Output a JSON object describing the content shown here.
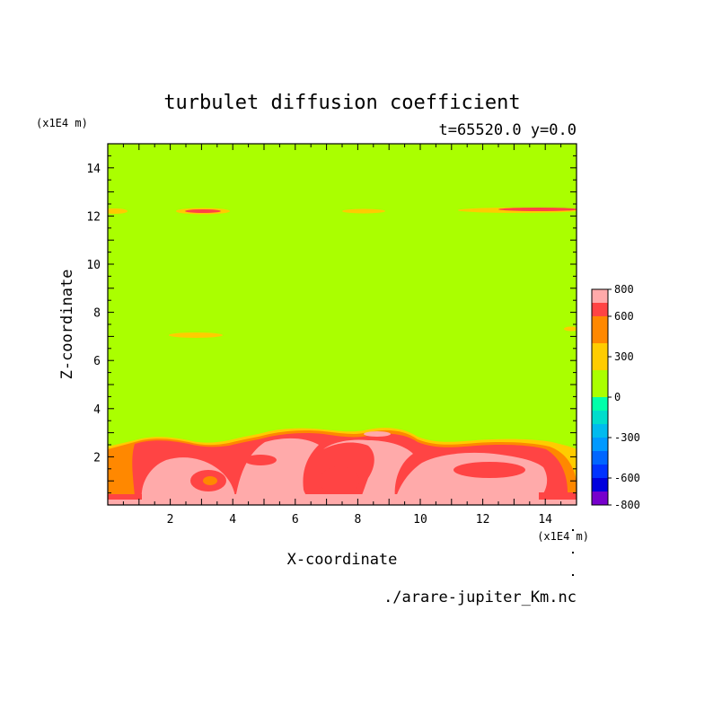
{
  "chart_data": {
    "type": "heatmap",
    "title": "turbulet diffusion coefficient",
    "subtitle": "t=65520.0 y=0.0",
    "xlabel": "X-coordinate",
    "ylabel": "Z-coordinate",
    "x_unit": "(x1E4 m)",
    "y_unit": "(x1E4 m)",
    "xlim": [
      0,
      15
    ],
    "ylim": [
      0,
      15
    ],
    "x_ticks": [
      2,
      4,
      6,
      8,
      10,
      12,
      14
    ],
    "y_ticks": [
      2,
      4,
      6,
      8,
      10,
      12,
      14
    ],
    "source_file": "./arare-jupiter_Km.nc",
    "background_level": 0,
    "colorbar": {
      "tick_labels": [
        "800",
        "600",
        "300",
        "0",
        "-300",
        "-600",
        "-800"
      ],
      "tick_values": [
        800,
        600,
        300,
        0,
        -300,
        -600,
        -800
      ],
      "min": -800,
      "max": 800,
      "levels": [
        {
          "from": -800,
          "to": -700,
          "color": "#7700cc"
        },
        {
          "from": -700,
          "to": -600,
          "color": "#0000dd"
        },
        {
          "from": -600,
          "to": -500,
          "color": "#0033ff"
        },
        {
          "from": -500,
          "to": -400,
          "color": "#0066ff"
        },
        {
          "from": -400,
          "to": -300,
          "color": "#0099ff"
        },
        {
          "from": -300,
          "to": -200,
          "color": "#00bbee"
        },
        {
          "from": -200,
          "to": -100,
          "color": "#00ddcc"
        },
        {
          "from": -100,
          "to": 0,
          "color": "#00ffaa"
        },
        {
          "from": 0,
          "to": 100,
          "color": "#aaff00"
        },
        {
          "from": 100,
          "to": 200,
          "color": "#aaff00"
        },
        {
          "from": 200,
          "to": 300,
          "color": "#ffcc00"
        },
        {
          "from": 300,
          "to": 400,
          "color": "#ffcc00"
        },
        {
          "from": 400,
          "to": 500,
          "color": "#ff8800"
        },
        {
          "from": 500,
          "to": 600,
          "color": "#ff8800"
        },
        {
          "from": 600,
          "to": 700,
          "color": "#ff4444"
        },
        {
          "from": 700,
          "to": 800,
          "color": "#ffaaaa"
        }
      ]
    },
    "features": [
      {
        "kind": "boundary_layer",
        "x_range": [
          0,
          15
        ],
        "z_top_approx": 3.2,
        "max_level": 800
      },
      {
        "kind": "thin_streak",
        "x_range": [
          0,
          0.5
        ],
        "z": 12.2,
        "max_level": 600
      },
      {
        "kind": "thin_streak",
        "x_range": [
          2.2,
          3.8
        ],
        "z": 12.2,
        "max_level": 600
      },
      {
        "kind": "thin_streak",
        "x_range": [
          7.5,
          9.0
        ],
        "z": 12.2,
        "max_level": 300
      },
      {
        "kind": "thin_streak",
        "x_range": [
          11.3,
          15
        ],
        "z": 12.2,
        "max_level": 600
      },
      {
        "kind": "thin_streak",
        "x_range": [
          1.9,
          3.7
        ],
        "z": 7.0,
        "max_level": 300
      },
      {
        "kind": "thin_streak",
        "x_range": [
          14.5,
          15
        ],
        "z": 7.3,
        "max_level": 300
      }
    ]
  }
}
